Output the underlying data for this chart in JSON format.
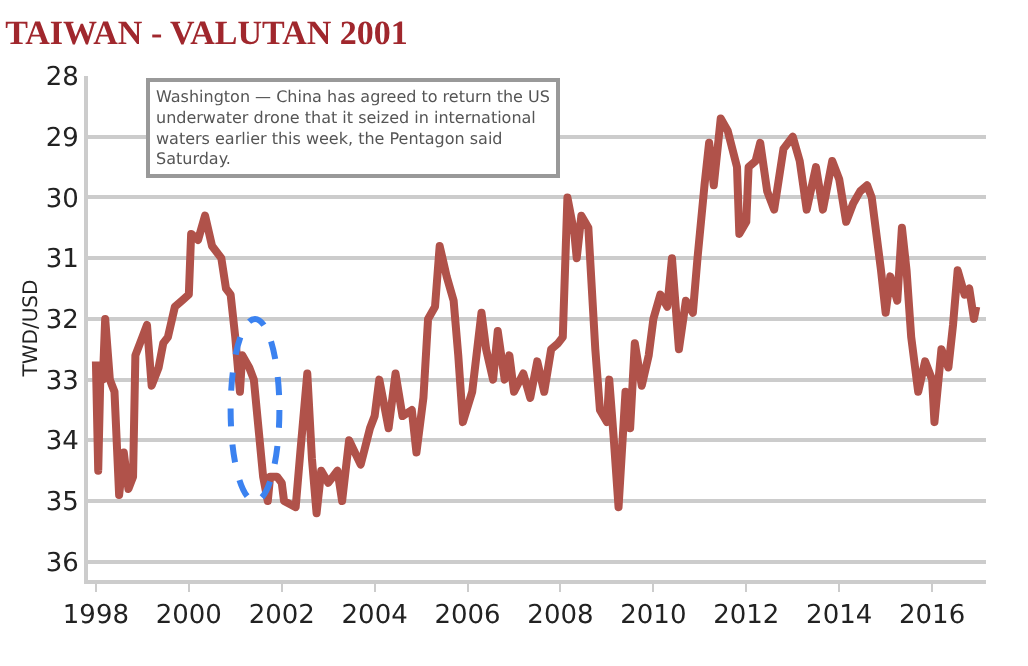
{
  "chart_data": {
    "type": "line",
    "title": "TAIWAN - VALUTAN 2001",
    "ylabel": "TWD/USD",
    "annotations": [
      "Washington — China has agreed to return the US underwater drone that it seized in international waters earlier this week, the Pentagon said Saturday."
    ],
    "x": [
      1998.0,
      1998.05,
      1998.1,
      1998.15,
      1998.2,
      1998.3,
      1998.4,
      1998.5,
      1998.6,
      1998.7,
      1998.8,
      1998.85,
      1999.0,
      1999.1,
      1999.2,
      1999.35,
      1999.45,
      1999.55,
      1999.7,
      1999.85,
      2000.0,
      2000.05,
      2000.2,
      2000.35,
      2000.5,
      2000.7,
      2000.8,
      2000.9,
      2001.0,
      2001.1,
      2001.15,
      2001.3,
      2001.4,
      2001.6,
      2001.7,
      2001.75,
      2001.9,
      2002.0,
      2002.05,
      2002.3,
      2002.4,
      2002.55,
      2002.65,
      2002.75,
      2002.85,
      2003.0,
      2003.2,
      2003.3,
      2003.45,
      2003.7,
      2003.9,
      2004.0,
      2004.1,
      2004.3,
      2004.45,
      2004.6,
      2004.8,
      2004.9,
      2005.05,
      2005.15,
      2005.3,
      2005.4,
      2005.55,
      2005.7,
      2005.8,
      2005.9,
      2006.1,
      2006.3,
      2006.4,
      2006.55,
      2006.65,
      2006.8,
      2006.9,
      2007.0,
      2007.2,
      2007.35,
      2007.5,
      2007.65,
      2007.8,
      2007.95,
      2008.05,
      2008.15,
      2008.3,
      2008.35,
      2008.45,
      2008.6,
      2008.75,
      2008.85,
      2009.0,
      2009.05,
      2009.15,
      2009.25,
      2009.4,
      2009.5,
      2009.6,
      2009.75,
      2009.9,
      2010.0,
      2010.15,
      2010.3,
      2010.4,
      2010.55,
      2010.7,
      2010.85,
      2010.95,
      2011.1,
      2011.2,
      2011.3,
      2011.45,
      2011.6,
      2011.8,
      2011.85,
      2012.0,
      2012.05,
      2012.2,
      2012.3,
      2012.45,
      2012.6,
      2012.8,
      2013.0,
      2013.15,
      2013.3,
      2013.5,
      2013.65,
      2013.85,
      2014.0,
      2014.15,
      2014.3,
      2014.45,
      2014.6,
      2014.7,
      2014.9,
      2015.0,
      2015.1,
      2015.25,
      2015.35,
      2015.45,
      2015.55,
      2015.7,
      2015.85,
      2016.0,
      2016.05,
      2016.2,
      2016.35,
      2016.45,
      2016.55,
      2016.7,
      2016.8,
      2016.9,
      2016.95
    ],
    "series": [
      {
        "color": "#b0524a",
        "values": [
          32.7,
          34.5,
          32.8,
          33.0,
          32.0,
          33.0,
          33.2,
          34.9,
          34.2,
          34.8,
          34.6,
          32.6,
          32.3,
          32.1,
          33.1,
          32.8,
          32.4,
          32.3,
          31.8,
          31.7,
          31.6,
          30.6,
          30.7,
          30.3,
          30.8,
          31.0,
          31.5,
          31.6,
          32.3,
          33.2,
          32.6,
          32.8,
          33.0,
          34.6,
          35.0,
          34.6,
          34.6,
          34.7,
          35.0,
          35.1,
          34.2,
          32.9,
          34.3,
          35.2,
          34.5,
          34.7,
          34.5,
          35.0,
          34.0,
          34.4,
          33.8,
          33.6,
          33.0,
          33.8,
          32.9,
          33.6,
          33.5,
          34.2,
          33.3,
          32.0,
          31.8,
          30.8,
          31.3,
          31.7,
          32.6,
          33.7,
          33.2,
          31.9,
          32.5,
          33.0,
          32.2,
          33.0,
          32.6,
          33.2,
          32.9,
          33.3,
          32.7,
          33.2,
          32.5,
          32.4,
          32.3,
          30.0,
          30.6,
          31.0,
          30.3,
          30.5,
          32.5,
          33.5,
          33.7,
          33.0,
          34.0,
          35.1,
          33.2,
          33.8,
          32.4,
          33.1,
          32.6,
          32.0,
          31.6,
          31.8,
          31.0,
          32.5,
          31.7,
          31.9,
          31.0,
          29.8,
          29.1,
          29.8,
          28.7,
          28.9,
          29.5,
          30.6,
          30.4,
          29.5,
          29.4,
          29.1,
          29.9,
          30.2,
          29.2,
          29.0,
          29.4,
          30.2,
          29.5,
          30.2,
          29.4,
          29.7,
          30.4,
          30.1,
          29.9,
          29.8,
          30.0,
          31.2,
          31.9,
          31.3,
          31.7,
          30.5,
          31.2,
          32.3,
          33.2,
          32.7,
          33.0,
          33.7,
          32.5,
          32.8,
          32.1,
          31.2,
          31.6,
          31.5,
          32.0,
          31.8
        ]
      }
    ],
    "xlim": [
      1997.83,
      2017.16
    ],
    "xticks": [
      1998,
      2000,
      2002,
      2004,
      2006,
      2008,
      2010,
      2012,
      2014,
      2016
    ],
    "ylim": [
      36.3,
      28
    ],
    "yticks": [
      28,
      29,
      30,
      31,
      32,
      33,
      34,
      35,
      36
    ],
    "grid": "y",
    "marker": "none",
    "line_style": "solid"
  }
}
